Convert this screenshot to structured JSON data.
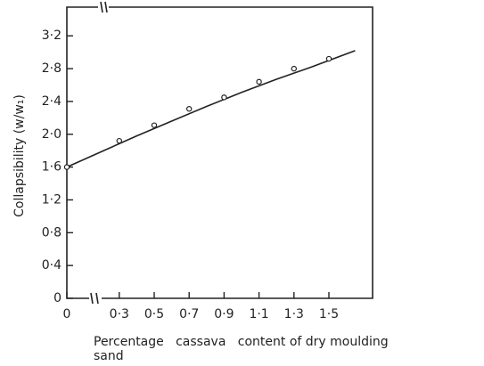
{
  "chart_data": {
    "type": "scatter",
    "ylabel": "Collapsibility (w/w₁)",
    "xlabel": [
      "Percentage   cassava   content of dry moulding",
      "sand"
    ],
    "xlim": [
      0,
      1.75
    ],
    "ylim": [
      0,
      3.55
    ],
    "xticks": [
      0,
      {
        "value": 0.3,
        "label": "0·3"
      },
      {
        "value": 0.5,
        "label": "0·5"
      },
      {
        "value": 0.7,
        "label": "0·7"
      },
      {
        "value": 0.9,
        "label": "0·9"
      },
      {
        "value": 1.1,
        "label": "1·1"
      },
      {
        "value": 1.3,
        "label": "1·3"
      },
      {
        "value": 1.5,
        "label": "1·5"
      }
    ],
    "yticks": [
      0,
      {
        "value": 0.4,
        "label": "0·4"
      },
      {
        "value": 0.8,
        "label": "0·8"
      },
      {
        "value": 1.2,
        "label": "1·2"
      },
      {
        "value": 1.6,
        "label": "1·6"
      },
      {
        "value": 2.0,
        "label": "2·0"
      },
      {
        "value": 2.4,
        "label": "2·4"
      },
      {
        "value": 2.8,
        "label": "2·8"
      },
      {
        "value": 3.2,
        "label": "3·2"
      }
    ],
    "series": [
      {
        "color": "#222",
        "marker": "circle",
        "x": [
          0,
          0.3,
          0.5,
          0.7,
          0.9,
          1.1,
          1.3,
          1.5
        ],
        "values": [
          1.6,
          1.92,
          2.11,
          2.31,
          2.45,
          2.64,
          2.8,
          2.92
        ]
      },
      {
        "color": "#222",
        "marker": "none",
        "x": [
          0,
          0.2,
          0.4,
          0.6,
          0.8,
          1.0,
          1.2,
          1.4,
          1.65
        ],
        "values": [
          1.6,
          1.79,
          1.98,
          2.16,
          2.34,
          2.51,
          2.67,
          2.82,
          3.02
        ]
      }
    ]
  }
}
